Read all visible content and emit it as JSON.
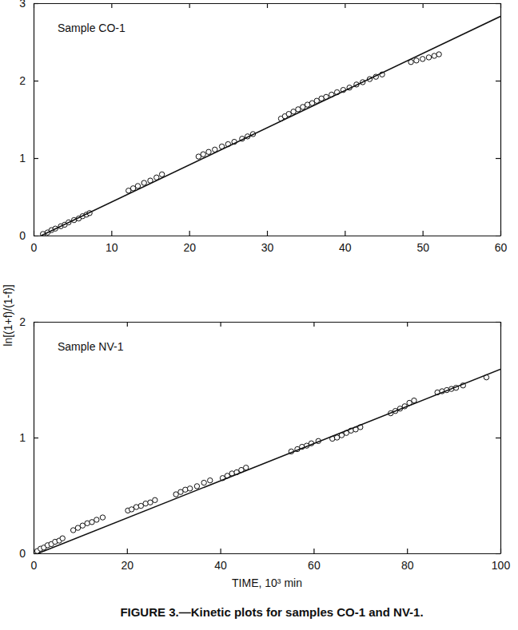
{
  "chart_data": [
    {
      "type": "scatter",
      "title": "Sample CO-1",
      "xlim": [
        0,
        60
      ],
      "xticks": [
        0,
        10,
        20,
        30,
        40,
        50,
        60
      ],
      "ylim": [
        0,
        3
      ],
      "yticks": [
        0,
        1,
        2,
        3
      ],
      "series": [
        {
          "type": "scatter",
          "marker": "circle",
          "color": "#111111",
          "x": [
            1.2,
            1.8,
            2.3,
            2.8,
            3.5,
            4.0,
            4.5,
            5.2,
            5.8,
            6.3,
            6.8,
            7.2,
            12.2,
            12.8,
            13.4,
            14.2,
            15.0,
            15.8,
            16.5,
            21.2,
            21.8,
            22.5,
            23.3,
            24.2,
            25.0,
            25.8,
            26.8,
            27.5,
            28.2,
            31.8,
            32.3,
            32.8,
            33.4,
            34.0,
            34.6,
            35.2,
            35.8,
            36.4,
            37.0,
            37.6,
            38.3,
            39.0,
            39.8,
            40.6,
            41.5,
            42.3,
            43.2,
            44.0,
            44.8,
            48.5,
            49.2,
            50.0,
            50.8,
            51.5,
            52.1
          ],
          "values": [
            0.02,
            0.04,
            0.07,
            0.09,
            0.12,
            0.14,
            0.17,
            0.2,
            0.22,
            0.25,
            0.27,
            0.29,
            0.58,
            0.61,
            0.64,
            0.68,
            0.71,
            0.75,
            0.79,
            1.02,
            1.05,
            1.08,
            1.11,
            1.15,
            1.18,
            1.21,
            1.25,
            1.28,
            1.31,
            1.51,
            1.54,
            1.57,
            1.6,
            1.63,
            1.66,
            1.69,
            1.71,
            1.74,
            1.77,
            1.79,
            1.82,
            1.85,
            1.88,
            1.91,
            1.95,
            1.98,
            2.02,
            2.05,
            2.08,
            2.24,
            2.26,
            2.28,
            2.3,
            2.32,
            2.34
          ]
        },
        {
          "type": "line",
          "line_style": "solid",
          "color": "#111111",
          "x": [
            1,
            60
          ],
          "values": [
            0,
            2.83
          ]
        }
      ]
    },
    {
      "type": "scatter",
      "title": "Sample NV-1",
      "x_label": "TIME, 10³ min",
      "xlim": [
        0,
        100
      ],
      "xticks": [
        0,
        20,
        40,
        60,
        80,
        100
      ],
      "ylim": [
        0,
        2
      ],
      "yticks": [
        0,
        1,
        2
      ],
      "series": [
        {
          "type": "scatter",
          "marker": "circle",
          "color": "#111111",
          "x": [
            0.8,
            1.5,
            2.2,
            3.0,
            3.8,
            4.6,
            5.5,
            6.2,
            8.5,
            9.5,
            10.5,
            11.5,
            12.5,
            13.5,
            14.8,
            20.2,
            21.0,
            22.0,
            23.0,
            24.0,
            25.0,
            26.0,
            30.5,
            31.5,
            32.5,
            33.5,
            35.0,
            36.5,
            37.8,
            40.5,
            41.5,
            42.5,
            43.5,
            44.5,
            45.5,
            55.2,
            56.5,
            57.5,
            58.5,
            59.5,
            61.0,
            64.0,
            65.0,
            66.0,
            67.0,
            68.0,
            69.0,
            70.0,
            76.5,
            77.5,
            78.5,
            79.5,
            80.5,
            81.5,
            86.5,
            87.5,
            88.5,
            89.5,
            90.5,
            92.0,
            97.0
          ],
          "values": [
            0.02,
            0.04,
            0.05,
            0.07,
            0.08,
            0.1,
            0.11,
            0.13,
            0.2,
            0.22,
            0.24,
            0.26,
            0.27,
            0.29,
            0.31,
            0.37,
            0.38,
            0.4,
            0.41,
            0.43,
            0.44,
            0.46,
            0.51,
            0.53,
            0.55,
            0.56,
            0.58,
            0.61,
            0.63,
            0.65,
            0.67,
            0.69,
            0.7,
            0.72,
            0.74,
            0.88,
            0.9,
            0.92,
            0.93,
            0.95,
            0.97,
            0.99,
            1.0,
            1.02,
            1.04,
            1.06,
            1.07,
            1.09,
            1.21,
            1.23,
            1.25,
            1.27,
            1.3,
            1.32,
            1.39,
            1.4,
            1.41,
            1.42,
            1.43,
            1.45,
            1.52
          ]
        },
        {
          "type": "line",
          "line_style": "solid",
          "color": "#111111",
          "x": [
            1,
            100
          ],
          "values": [
            0,
            1.59
          ]
        }
      ]
    }
  ],
  "y_label": "ln[(1+f)/(1-f)]",
  "caption": "FIGURE 3.—Kinetic plots for samples CO-1 and NV-1."
}
